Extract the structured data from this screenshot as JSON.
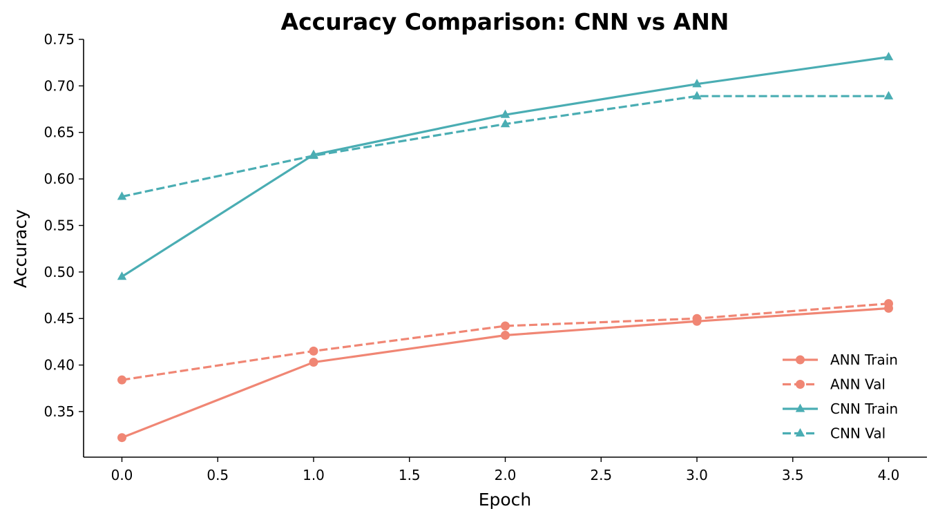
{
  "chart_data": {
    "type": "line",
    "title": "Accuracy Comparison: CNN vs ANN",
    "xlabel": "Epoch",
    "ylabel": "Accuracy",
    "xlim": [
      -0.2,
      4.2
    ],
    "ylim": [
      0.301,
      0.75
    ],
    "xticks": [
      "0.0",
      "0.5",
      "1.0",
      "1.5",
      "2.0",
      "2.5",
      "3.0",
      "3.5",
      "4.0"
    ],
    "yticks": [
      "0.35",
      "0.40",
      "0.45",
      "0.50",
      "0.55",
      "0.60",
      "0.65",
      "0.70",
      "0.75"
    ],
    "grid": false,
    "legend_position": "lower-right",
    "x": [
      0,
      1,
      2,
      3,
      4
    ],
    "series": [
      {
        "name": "ANN Train",
        "values": [
          0.322,
          0.403,
          0.432,
          0.447,
          0.461
        ],
        "color": "#F08674",
        "style": "solid",
        "marker": "circle"
      },
      {
        "name": "ANN Val",
        "values": [
          0.384,
          0.415,
          0.442,
          0.45,
          0.466
        ],
        "color": "#F08674",
        "style": "dashed",
        "marker": "circle"
      },
      {
        "name": "CNN Train",
        "values": [
          0.495,
          0.626,
          0.669,
          0.702,
          0.731
        ],
        "color": "#4AADB3",
        "style": "solid",
        "marker": "triangle"
      },
      {
        "name": "CNN Val",
        "values": [
          0.581,
          0.625,
          0.659,
          0.689,
          0.689
        ],
        "color": "#4AADB3",
        "style": "dashed",
        "marker": "triangle"
      }
    ]
  }
}
